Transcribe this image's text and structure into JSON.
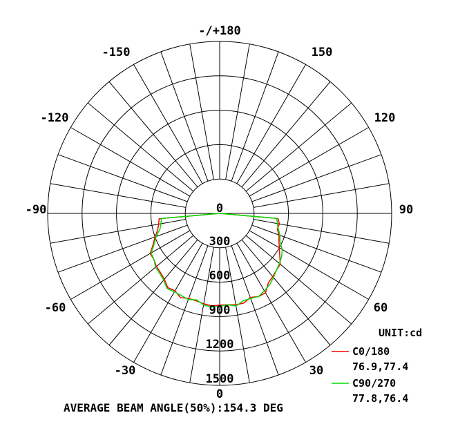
{
  "chart_data": {
    "type": "polar",
    "chart_kind": "photometric polar intensity distribution",
    "unit": "UNIT:cd",
    "footer": "AVERAGE BEAM ANGLE(50%):154.3 DEG",
    "angle_tick_labels": [
      "-/+180",
      "150",
      "120",
      "90",
      "60",
      "30",
      "0",
      "-30",
      "-60",
      "-90",
      "-120",
      "-150"
    ],
    "angle_tick_values": [
      180,
      150,
      120,
      90,
      60,
      30,
      0,
      -30,
      -60,
      -90,
      -120,
      -150
    ],
    "radial_ticks": [
      0,
      300,
      600,
      900,
      1200,
      1500
    ],
    "radial_tick_labels": [
      "0",
      "300",
      "600",
      "900",
      "1200",
      "1500"
    ],
    "radial_range": [
      0,
      1500
    ],
    "grid": true,
    "legend_position": "bottom-right",
    "series": [
      {
        "name": "C0/180",
        "beam_angles": "76.9,77.4",
        "color": "#ff0000",
        "angles": [
          -90,
          -85,
          -80,
          -75,
          -70,
          -65,
          -60,
          -55,
          -50,
          -45,
          -40,
          -35,
          -30,
          -25,
          -20,
          -15,
          -10,
          -5,
          0,
          5,
          10,
          15,
          20,
          25,
          30,
          35,
          40,
          45,
          50,
          55,
          60,
          65,
          70,
          75,
          80,
          85,
          90
        ],
        "values": [
          0,
          530,
          540,
          560,
          600,
          640,
          700,
          700,
          720,
          730,
          750,
          790,
          780,
          810,
          790,
          790,
          800,
          810,
          800,
          800,
          810,
          810,
          780,
          800,
          800,
          740,
          720,
          700,
          690,
          640,
          600,
          570,
          550,
          520,
          530,
          510,
          0
        ]
      },
      {
        "name": "C90/270",
        "beam_angles": "77.8,76.4",
        "color": "#00dd00",
        "angles": [
          -90,
          -85,
          -80,
          -75,
          -70,
          -65,
          -60,
          -55,
          -50,
          -45,
          -40,
          -35,
          -30,
          -25,
          -20,
          -15,
          -10,
          -5,
          0,
          5,
          10,
          15,
          20,
          25,
          30,
          35,
          40,
          45,
          50,
          55,
          60,
          65,
          70,
          75,
          80,
          85,
          90
        ],
        "values": [
          0,
          510,
          520,
          540,
          590,
          630,
          690,
          700,
          730,
          740,
          760,
          800,
          790,
          790,
          800,
          780,
          810,
          820,
          810,
          800,
          820,
          790,
          790,
          800,
          780,
          760,
          730,
          700,
          680,
          660,
          630,
          580,
          560,
          530,
          510,
          500,
          0
        ]
      }
    ]
  }
}
